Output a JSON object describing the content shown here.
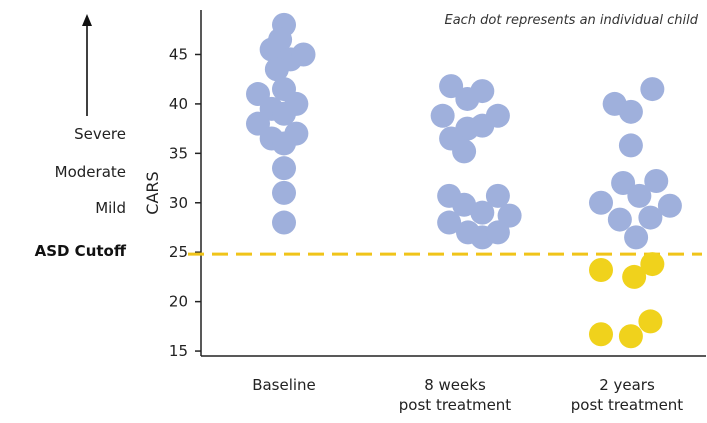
{
  "chart_data": {
    "type": "scatter",
    "title": "",
    "annotation": "Each dot represents an individual child",
    "ylabel": "CARS",
    "xlabel": "",
    "ylim": [
      14.5,
      49.5
    ],
    "yticks": [
      15,
      20,
      25,
      30,
      35,
      40,
      45
    ],
    "grid": false,
    "categories": [
      "Baseline",
      "8 weeks\npost treatment",
      "2 years\npost treatment"
    ],
    "category_lines": [
      [
        "Baseline"
      ],
      [
        "8 weeks",
        "post treatment"
      ],
      [
        "2 years",
        "post treatment"
      ]
    ],
    "severity_labels": [
      "Severe",
      "Moderate",
      "Mild"
    ],
    "severity_arrow": "up",
    "reference_line": {
      "label": "ASD Cutoff",
      "value": 24.8,
      "color": "#f0c419",
      "style": "dashed"
    },
    "colors": {
      "above_cutoff": "#9fb0dc",
      "below_cutoff": "#f0d21c"
    },
    "points": [
      {
        "group": 0,
        "x": 0.0,
        "y": 48.0
      },
      {
        "group": 0,
        "x": -0.19,
        "y": 45.5
      },
      {
        "group": 0,
        "x": -0.06,
        "y": 46.5
      },
      {
        "group": 0,
        "x": 0.1,
        "y": 44.5
      },
      {
        "group": 0,
        "x": 0.3,
        "y": 45.0
      },
      {
        "group": 0,
        "x": -0.11,
        "y": 43.5
      },
      {
        "group": 0,
        "x": 0.0,
        "y": 41.5
      },
      {
        "group": 0,
        "x": -0.4,
        "y": 41.0
      },
      {
        "group": 0,
        "x": -0.19,
        "y": 39.5
      },
      {
        "group": 0,
        "x": 0.0,
        "y": 39.0
      },
      {
        "group": 0,
        "x": 0.19,
        "y": 40.0
      },
      {
        "group": 0,
        "x": -0.4,
        "y": 38.0
      },
      {
        "group": 0,
        "x": -0.19,
        "y": 36.5
      },
      {
        "group": 0,
        "x": 0.0,
        "y": 36.0
      },
      {
        "group": 0,
        "x": 0.19,
        "y": 37.0
      },
      {
        "group": 0,
        "x": 0.0,
        "y": 33.5
      },
      {
        "group": 0,
        "x": 0.0,
        "y": 31.0
      },
      {
        "group": 0,
        "x": 0.0,
        "y": 28.0
      },
      {
        "group": 1,
        "x": -0.06,
        "y": 41.8
      },
      {
        "group": 1,
        "x": 0.19,
        "y": 40.5
      },
      {
        "group": 1,
        "x": 0.42,
        "y": 41.3
      },
      {
        "group": 1,
        "x": -0.19,
        "y": 38.8
      },
      {
        "group": 1,
        "x": 0.19,
        "y": 37.5
      },
      {
        "group": 1,
        "x": 0.42,
        "y": 37.8
      },
      {
        "group": 1,
        "x": 0.66,
        "y": 38.8
      },
      {
        "group": 1,
        "x": -0.06,
        "y": 36.5
      },
      {
        "group": 1,
        "x": 0.14,
        "y": 35.2
      },
      {
        "group": 1,
        "x": -0.09,
        "y": 30.7
      },
      {
        "group": 1,
        "x": 0.66,
        "y": 30.7
      },
      {
        "group": 1,
        "x": 0.14,
        "y": 29.8
      },
      {
        "group": 1,
        "x": 0.42,
        "y": 29.0
      },
      {
        "group": 1,
        "x": 0.84,
        "y": 28.7
      },
      {
        "group": 1,
        "x": -0.09,
        "y": 28.0
      },
      {
        "group": 1,
        "x": 0.2,
        "y": 27.0
      },
      {
        "group": 1,
        "x": 0.42,
        "y": 26.5
      },
      {
        "group": 1,
        "x": 0.66,
        "y": 27.0
      },
      {
        "group": 2,
        "x": -0.19,
        "y": 40.0
      },
      {
        "group": 2,
        "x": 0.06,
        "y": 39.2
      },
      {
        "group": 2,
        "x": 0.39,
        "y": 41.5
      },
      {
        "group": 2,
        "x": 0.06,
        "y": 35.8
      },
      {
        "group": 2,
        "x": -0.06,
        "y": 32.0
      },
      {
        "group": 2,
        "x": 0.19,
        "y": 30.7
      },
      {
        "group": 2,
        "x": 0.45,
        "y": 32.2
      },
      {
        "group": 2,
        "x": -0.4,
        "y": 30.0
      },
      {
        "group": 2,
        "x": -0.11,
        "y": 28.3
      },
      {
        "group": 2,
        "x": 0.36,
        "y": 28.5
      },
      {
        "group": 2,
        "x": 0.66,
        "y": 29.7
      },
      {
        "group": 2,
        "x": 0.14,
        "y": 26.5
      },
      {
        "group": 2,
        "x": -0.4,
        "y": 23.2
      },
      {
        "group": 2,
        "x": 0.11,
        "y": 22.5
      },
      {
        "group": 2,
        "x": 0.39,
        "y": 23.8
      },
      {
        "group": 2,
        "x": -0.4,
        "y": 16.7
      },
      {
        "group": 2,
        "x": 0.06,
        "y": 16.5
      },
      {
        "group": 2,
        "x": 0.36,
        "y": 18.0
      }
    ]
  }
}
